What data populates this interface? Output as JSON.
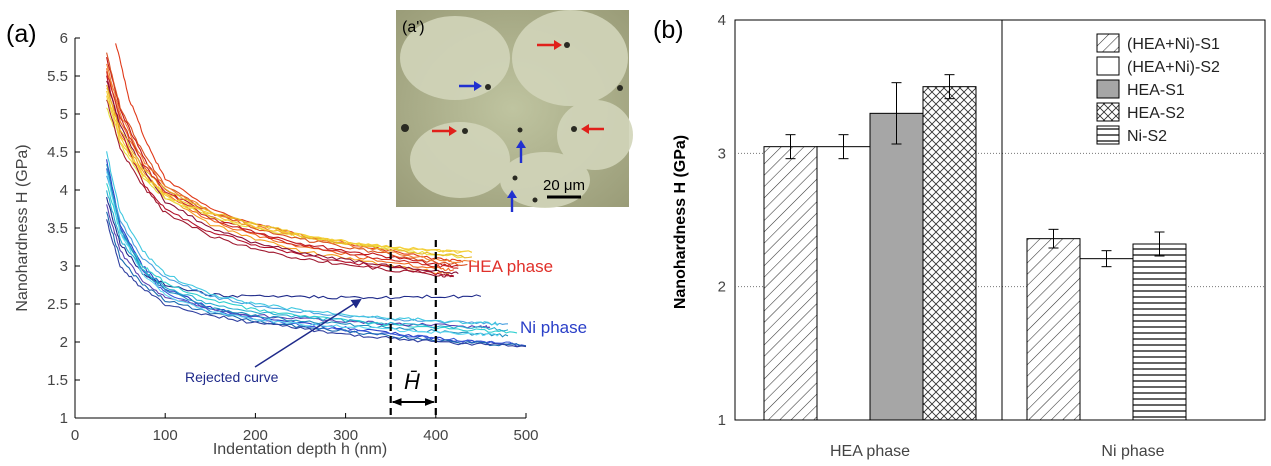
{
  "chart_data": [
    {
      "type": "line",
      "panel_label": "(a)",
      "xlabel": "Indentation depth h (nm)",
      "ylabel": "Nanohardness H (GPa)",
      "xlim": [
        0,
        500
      ],
      "ylim": [
        1,
        6
      ],
      "x_ticks": [
        "0",
        "100",
        "200",
        "300",
        "400",
        "500"
      ],
      "y_ticks": [
        "1",
        "1.5",
        "2",
        "2.5",
        "3",
        "3.5",
        "4",
        "4.5",
        "5",
        "5.5",
        "6"
      ],
      "grid": false,
      "annotations": [
        {
          "text": "HEA phase",
          "color": "#e0302a"
        },
        {
          "text": "Ni phase",
          "color": "#2a3fc8"
        },
        {
          "text": "Rejected curve",
          "color": "#1f2a8a"
        },
        {
          "text": "H̄",
          "color": "#000000"
        }
      ],
      "averaging_window": [
        350,
        400
      ],
      "series_groups": [
        {
          "group": "HEA phase",
          "colors": [
            "#c0141a",
            "#e03a1a",
            "#f06a20",
            "#f5a020",
            "#f2cc30",
            "#e8e040",
            "#b3102a",
            "#8a1238",
            "#d85020",
            "#a01a30",
            "#f08030",
            "#e6b828",
            "#cc2a22",
            "#f4d03a"
          ],
          "curves": [
            {
              "x": [
                35,
                50,
                75,
                100,
                150,
                200,
                250,
                300,
                350,
                400,
                425
              ],
              "y": [
                5.75,
                5.05,
                4.45,
                4.0,
                3.65,
                3.45,
                3.3,
                3.2,
                3.12,
                3.02,
                3.0
              ]
            },
            {
              "x": [
                45,
                60,
                80,
                100,
                150,
                200,
                250,
                300,
                350,
                400,
                430
              ],
              "y": [
                5.95,
                5.2,
                4.6,
                4.15,
                3.75,
                3.55,
                3.4,
                3.3,
                3.2,
                3.1,
                3.05
              ]
            },
            {
              "x": [
                35,
                50,
                75,
                100,
                150,
                200,
                250,
                300,
                350,
                400,
                420
              ],
              "y": [
                5.6,
                4.9,
                4.35,
                3.95,
                3.6,
                3.4,
                3.25,
                3.15,
                3.05,
                2.97,
                2.95
              ]
            },
            {
              "x": [
                35,
                50,
                75,
                100,
                150,
                200,
                250,
                300,
                350,
                400,
                415
              ],
              "y": [
                5.4,
                4.75,
                4.25,
                3.9,
                3.55,
                3.35,
                3.2,
                3.1,
                3.0,
                2.92,
                2.9
              ]
            },
            {
              "x": [
                35,
                50,
                75,
                100,
                150,
                200,
                250,
                300,
                350,
                400,
                440
              ],
              "y": [
                5.3,
                4.7,
                4.2,
                3.95,
                3.7,
                3.55,
                3.42,
                3.32,
                3.25,
                3.2,
                3.18
              ]
            },
            {
              "x": [
                35,
                50,
                75,
                100,
                150,
                200,
                250,
                300,
                350,
                400,
                430
              ],
              "y": [
                5.1,
                4.6,
                4.15,
                3.9,
                3.65,
                3.5,
                3.38,
                3.3,
                3.22,
                3.15,
                3.12
              ]
            },
            {
              "x": [
                35,
                50,
                75,
                100,
                150,
                200,
                250,
                300,
                350,
                400,
                420
              ],
              "y": [
                5.5,
                4.8,
                4.1,
                3.75,
                3.45,
                3.28,
                3.15,
                3.05,
                2.98,
                2.9,
                2.87
              ]
            },
            {
              "x": [
                35,
                50,
                75,
                100,
                150,
                200,
                250,
                300,
                350,
                400,
                425
              ],
              "y": [
                5.45,
                4.85,
                4.3,
                3.85,
                3.5,
                3.3,
                3.18,
                3.08,
                3.0,
                2.93,
                2.9
              ]
            },
            {
              "x": [
                35,
                50,
                75,
                100,
                150,
                200,
                250,
                300,
                350,
                400,
                435
              ],
              "y": [
                5.8,
                5.1,
                4.5,
                4.05,
                3.7,
                3.5,
                3.35,
                3.25,
                3.15,
                3.05,
                3.02
              ]
            },
            {
              "x": [
                35,
                50,
                75,
                100,
                150,
                200,
                250,
                300,
                350,
                400,
                420
              ],
              "y": [
                5.2,
                4.55,
                4.05,
                3.7,
                3.4,
                3.22,
                3.1,
                3.02,
                2.95,
                2.88,
                2.86
              ]
            },
            {
              "x": [
                35,
                50,
                75,
                100,
                150,
                200,
                250,
                300,
                350,
                400,
                445
              ],
              "y": [
                5.65,
                5.0,
                4.4,
                4.05,
                3.72,
                3.52,
                3.38,
                3.28,
                3.18,
                3.08,
                3.05
              ]
            },
            {
              "x": [
                35,
                50,
                75,
                100,
                150,
                200,
                250,
                300,
                350,
                400,
                440
              ],
              "y": [
                5.35,
                4.8,
                4.3,
                4.0,
                3.72,
                3.55,
                3.4,
                3.3,
                3.22,
                3.15,
                3.12
              ]
            },
            {
              "x": [
                35,
                50,
                75,
                100,
                150,
                200,
                250,
                300,
                350,
                400,
                425
              ],
              "y": [
                5.55,
                4.95,
                4.35,
                3.98,
                3.62,
                3.42,
                3.27,
                3.17,
                3.08,
                3.0,
                2.97
              ]
            },
            {
              "x": [
                35,
                50,
                75,
                100,
                150,
                200,
                250,
                300,
                350,
                400,
                440
              ],
              "y": [
                5.25,
                4.65,
                4.2,
                3.92,
                3.68,
                3.52,
                3.4,
                3.32,
                3.26,
                3.2,
                3.18
              ]
            }
          ]
        },
        {
          "group": "Ni phase",
          "colors": [
            "#2a3fc8",
            "#3a5ad8",
            "#1f2a8a",
            "#4aa0e0",
            "#40c8e0",
            "#30d0d0",
            "#5a40b0",
            "#2090c0",
            "#1a6ab0",
            "#60d8f0",
            "#3040a0",
            "#28b0d0"
          ],
          "curves": [
            {
              "x": [
                35,
                50,
                75,
                100,
                150,
                200,
                250,
                300,
                350,
                400,
                450,
                500
              ],
              "y": [
                4.4,
                3.55,
                3.0,
                2.7,
                2.45,
                2.32,
                2.25,
                2.18,
                2.12,
                2.05,
                2.0,
                1.95
              ]
            },
            {
              "x": [
                35,
                50,
                75,
                100,
                150,
                200,
                250,
                300,
                350,
                400,
                450,
                490
              ],
              "y": [
                4.3,
                3.5,
                2.95,
                2.65,
                2.42,
                2.3,
                2.22,
                2.15,
                2.1,
                2.05,
                2.0,
                1.98
              ]
            },
            {
              "x": [
                35,
                50,
                75,
                100,
                150,
                200,
                250,
                300,
                350,
                400,
                450
              ],
              "y": [
                3.9,
                3.3,
                2.9,
                2.75,
                2.62,
                2.6,
                2.6,
                2.58,
                2.58,
                2.6,
                2.6
              ]
            },
            {
              "x": [
                35,
                50,
                75,
                100,
                150,
                200,
                250,
                300,
                350,
                400,
                450,
                480
              ],
              "y": [
                4.2,
                3.6,
                3.1,
                2.85,
                2.6,
                2.48,
                2.4,
                2.35,
                2.3,
                2.27,
                2.25,
                2.24
              ]
            },
            {
              "x": [
                35,
                50,
                75,
                100,
                150,
                200,
                250,
                300,
                350,
                400,
                450,
                470
              ],
              "y": [
                4.5,
                3.7,
                3.2,
                2.9,
                2.62,
                2.5,
                2.42,
                2.36,
                2.32,
                2.28,
                2.25,
                2.24
              ]
            },
            {
              "x": [
                35,
                50,
                75,
                100,
                150,
                200,
                250,
                300,
                350,
                400,
                450,
                490
              ],
              "y": [
                4.1,
                3.45,
                3.0,
                2.78,
                2.55,
                2.42,
                2.35,
                2.28,
                2.22,
                2.18,
                2.15,
                2.12
              ]
            },
            {
              "x": [
                35,
                50,
                75,
                100,
                150,
                200,
                250,
                300,
                350,
                400,
                450,
                460
              ],
              "y": [
                3.8,
                3.2,
                2.8,
                2.6,
                2.42,
                2.35,
                2.3,
                2.27,
                2.24,
                2.22,
                2.2,
                2.2
              ]
            },
            {
              "x": [
                35,
                50,
                75,
                100,
                150,
                200,
                250,
                300,
                350,
                400,
                450,
                480
              ],
              "y": [
                4.35,
                3.5,
                2.95,
                2.68,
                2.45,
                2.35,
                2.28,
                2.23,
                2.18,
                2.14,
                2.1,
                2.08
              ]
            },
            {
              "x": [
                35,
                50,
                75,
                100,
                150,
                200,
                250,
                300,
                350,
                400,
                450,
                500
              ],
              "y": [
                3.7,
                3.1,
                2.75,
                2.55,
                2.38,
                2.28,
                2.2,
                2.14,
                2.08,
                2.02,
                1.98,
                1.95
              ]
            },
            {
              "x": [
                35,
                50,
                75,
                100,
                150,
                200,
                250,
                300,
                350,
                400,
                450,
                470
              ],
              "y": [
                4.25,
                3.45,
                2.9,
                2.62,
                2.4,
                2.3,
                2.24,
                2.2,
                2.16,
                2.13,
                2.1,
                2.1
              ]
            },
            {
              "x": [
                35,
                50,
                75,
                100,
                150,
                200,
                250,
                300,
                350,
                400,
                450,
                500
              ],
              "y": [
                3.6,
                3.0,
                2.7,
                2.5,
                2.35,
                2.25,
                2.18,
                2.1,
                2.05,
                2.0,
                1.97,
                1.94
              ]
            },
            {
              "x": [
                35,
                50,
                75,
                100,
                150,
                200,
                250,
                300,
                350,
                400,
                450,
                480
              ],
              "y": [
                4.0,
                3.35,
                2.95,
                2.72,
                2.5,
                2.4,
                2.33,
                2.28,
                2.24,
                2.2,
                2.18,
                2.16
              ]
            }
          ]
        }
      ]
    },
    {
      "type": "bar",
      "panel_label": "(b)",
      "ylabel": "Nanohardness H (GPa)",
      "ylim": [
        1,
        4
      ],
      "y_ticks": [
        "1",
        "2",
        "3",
        "4"
      ],
      "grid": true,
      "legend": "top-right",
      "categories": [
        "HEA phase",
        "Ni phase"
      ],
      "series": [
        {
          "name": "(HEA+Ni)-S1",
          "pattern": "diagonal",
          "values": [
            3.05,
            2.36
          ],
          "errors": [
            0.09,
            0.07
          ]
        },
        {
          "name": "(HEA+Ni)-S2",
          "pattern": "none",
          "values": [
            3.05,
            2.21
          ],
          "errors": [
            0.09,
            0.06
          ]
        },
        {
          "name": "HEA-S1",
          "pattern": "solid-gray",
          "values": [
            3.3,
            null
          ],
          "errors": [
            0.23,
            null
          ]
        },
        {
          "name": "HEA-S2",
          "pattern": "crosshatch",
          "values": [
            3.5,
            null
          ],
          "errors": [
            0.09,
            null
          ]
        },
        {
          "name": "Ni-S2",
          "pattern": "horizontal",
          "values": [
            null,
            2.32
          ],
          "errors": [
            null,
            0.09
          ]
        }
      ]
    }
  ],
  "inset": {
    "label": "(a')",
    "scale_bar": "20 μm",
    "arrow_colors": {
      "red": "#e0201a",
      "blue": "#2030d0"
    }
  }
}
